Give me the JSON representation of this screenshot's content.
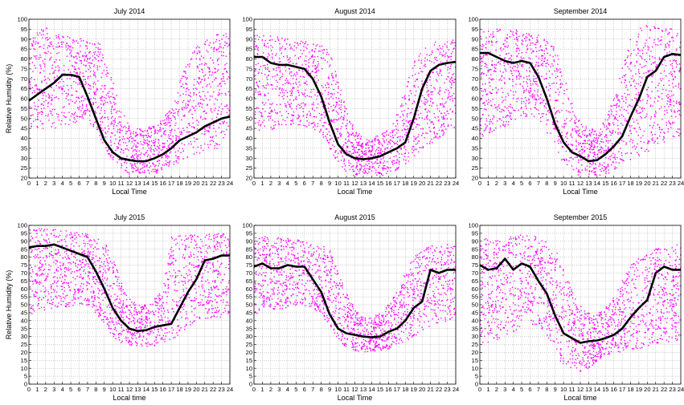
{
  "figure": {
    "ylabel": "Relative Humidity (%)",
    "scatter_color": "#ff00ff",
    "mean_color": "#000000"
  },
  "chart_data": [
    {
      "type": "scatter",
      "title": "July 2014",
      "xlabel": "Local Time",
      "ylabel": "Relative Humidity (%)",
      "xlim": [
        0,
        24
      ],
      "ylim": [
        20,
        100
      ],
      "xticks": [
        0,
        1,
        2,
        3,
        4,
        5,
        6,
        7,
        8,
        9,
        10,
        11,
        12,
        13,
        14,
        15,
        16,
        17,
        18,
        19,
        20,
        21,
        22,
        23,
        24
      ],
      "yticks": [
        20,
        25,
        30,
        35,
        40,
        45,
        50,
        55,
        60,
        65,
        70,
        75,
        80,
        85,
        90,
        95,
        100
      ],
      "grid": true,
      "series": [
        {
          "style": "scatter",
          "x": [
            0,
            1,
            2,
            3,
            4,
            5,
            6,
            7,
            8,
            9,
            10,
            11,
            12,
            13,
            14,
            15,
            16,
            17,
            18,
            19,
            20,
            21,
            22,
            23,
            24
          ],
          "y_low": [
            45,
            45,
            45,
            45,
            46,
            47,
            48,
            48,
            44,
            36,
            28,
            24,
            22,
            22,
            22,
            22,
            24,
            26,
            28,
            30,
            32,
            33,
            34,
            35,
            36
          ],
          "y_high": [
            90,
            94,
            96,
            93,
            92,
            92,
            91,
            90,
            89,
            86,
            70,
            55,
            48,
            45,
            45,
            47,
            50,
            55,
            68,
            80,
            87,
            90,
            92,
            93,
            95
          ]
        },
        {
          "style": "line",
          "x": [
            0,
            1,
            2,
            3,
            4,
            5,
            6,
            7,
            8,
            9,
            10,
            11,
            12,
            13,
            14,
            15,
            16,
            17,
            18,
            19,
            20,
            21,
            22,
            23,
            24
          ],
          "y": [
            59,
            62,
            65,
            68,
            72,
            72,
            71,
            61,
            50,
            39,
            33,
            30,
            29,
            28.5,
            28.5,
            30,
            32,
            35,
            39,
            41,
            43,
            46,
            48,
            50,
            51
          ]
        }
      ]
    },
    {
      "type": "scatter",
      "title": "August 2014",
      "xlabel": "Local Time",
      "ylabel": "",
      "xlim": [
        0,
        24
      ],
      "ylim": [
        20,
        100
      ],
      "xticks": [
        0,
        1,
        2,
        3,
        4,
        5,
        6,
        7,
        8,
        9,
        10,
        11,
        12,
        13,
        14,
        15,
        16,
        17,
        18,
        19,
        20,
        21,
        22,
        23,
        24
      ],
      "yticks": [
        20,
        25,
        30,
        35,
        40,
        45,
        50,
        55,
        60,
        65,
        70,
        75,
        80,
        85,
        90,
        95,
        100
      ],
      "grid": true,
      "series": [
        {
          "style": "scatter",
          "x": [
            0,
            1,
            2,
            3,
            4,
            5,
            6,
            7,
            8,
            9,
            10,
            11,
            12,
            13,
            14,
            15,
            16,
            17,
            18,
            19,
            20,
            21,
            22,
            23,
            24
          ],
          "y_low": [
            43,
            43,
            44,
            45,
            46,
            47,
            46,
            45,
            42,
            35,
            27,
            22,
            21,
            21,
            21,
            21,
            22,
            24,
            27,
            30,
            34,
            37,
            40,
            42,
            43
          ],
          "y_high": [
            92,
            92,
            93,
            91,
            90,
            89,
            89,
            88,
            87,
            84,
            70,
            55,
            45,
            40,
            40,
            42,
            45,
            52,
            65,
            78,
            85,
            88,
            89,
            90,
            90
          ]
        },
        {
          "style": "line",
          "x": [
            0,
            1,
            2,
            3,
            4,
            5,
            6,
            7,
            8,
            9,
            10,
            11,
            12,
            13,
            14,
            15,
            16,
            17,
            18,
            19,
            20,
            21,
            22,
            23,
            24
          ],
          "y": [
            81,
            81,
            78,
            77,
            77,
            76,
            75,
            70,
            61,
            48,
            37,
            32,
            30,
            29.5,
            30,
            31,
            33,
            35,
            38,
            50,
            65,
            74,
            77,
            78,
            78.5
          ]
        }
      ]
    },
    {
      "type": "scatter",
      "title": "September 2014",
      "xlabel": "Local Time",
      "ylabel": "",
      "xlim": [
        0,
        24
      ],
      "ylim": [
        20,
        100
      ],
      "xticks": [
        0,
        1,
        2,
        3,
        4,
        5,
        6,
        7,
        8,
        9,
        10,
        11,
        12,
        13,
        14,
        15,
        16,
        17,
        18,
        19,
        20,
        21,
        22,
        23,
        24
      ],
      "yticks": [
        20,
        25,
        30,
        35,
        40,
        45,
        50,
        55,
        60,
        65,
        70,
        75,
        80,
        85,
        90,
        95,
        100
      ],
      "grid": true,
      "series": [
        {
          "style": "scatter",
          "x": [
            0,
            1,
            2,
            3,
            4,
            5,
            6,
            7,
            8,
            9,
            10,
            11,
            12,
            13,
            14,
            15,
            16,
            17,
            18,
            19,
            20,
            21,
            22,
            23,
            24
          ],
          "y_low": [
            40,
            42,
            44,
            46,
            48,
            50,
            50,
            48,
            42,
            35,
            27,
            23,
            21,
            21,
            21,
            22,
            23,
            25,
            28,
            30,
            33,
            36,
            38,
            40,
            41
          ],
          "y_high": [
            95,
            96,
            96,
            95,
            95,
            94,
            93,
            92,
            90,
            86,
            72,
            58,
            48,
            45,
            45,
            50,
            60,
            75,
            90,
            96,
            97,
            97,
            96,
            95,
            95
          ]
        },
        {
          "style": "line",
          "x": [
            0,
            1,
            2,
            3,
            4,
            5,
            6,
            7,
            8,
            9,
            10,
            11,
            12,
            13,
            14,
            15,
            16,
            17,
            18,
            19,
            20,
            21,
            22,
            23,
            24
          ],
          "y": [
            83,
            83,
            81,
            79,
            78,
            79,
            78,
            71,
            60,
            47,
            38,
            33,
            31,
            28.5,
            29,
            32,
            36,
            41,
            51,
            60,
            71,
            74,
            81,
            82.5,
            82
          ]
        }
      ]
    },
    {
      "type": "scatter",
      "title": "July 2015",
      "xlabel": "Local time",
      "ylabel": "Relative Humidity (%)",
      "xlim": [
        0,
        24
      ],
      "ylim": [
        0,
        100
      ],
      "xticks": [
        0,
        1,
        2,
        3,
        4,
        5,
        6,
        7,
        8,
        9,
        10,
        11,
        12,
        13,
        14,
        15,
        16,
        17,
        18,
        19,
        20,
        21,
        22,
        23,
        24
      ],
      "yticks": [
        0,
        5,
        10,
        15,
        20,
        25,
        30,
        35,
        40,
        45,
        50,
        55,
        60,
        65,
        70,
        75,
        80,
        85,
        90,
        95,
        100
      ],
      "grid": true,
      "series": [
        {
          "style": "scatter",
          "x": [
            0,
            1,
            2,
            3,
            4,
            5,
            6,
            7,
            8,
            9,
            10,
            11,
            12,
            13,
            14,
            15,
            16,
            17,
            18,
            19,
            20,
            21,
            22,
            23,
            24
          ],
          "y_low": [
            44,
            45,
            46,
            47,
            48,
            49,
            50,
            49,
            45,
            38,
            30,
            26,
            24,
            23,
            23,
            24,
            26,
            28,
            31,
            34,
            38,
            40,
            41,
            42,
            43
          ],
          "y_high": [
            97,
            98,
            98,
            98,
            97,
            97,
            96,
            95,
            93,
            90,
            80,
            65,
            55,
            50,
            50,
            55,
            60,
            93,
            94,
            94,
            95,
            95,
            95,
            95,
            95
          ]
        },
        {
          "style": "line",
          "x": [
            0,
            1,
            2,
            3,
            4,
            5,
            6,
            7,
            8,
            9,
            10,
            11,
            12,
            13,
            14,
            15,
            16,
            17,
            18,
            19,
            20,
            21,
            22,
            23,
            24
          ],
          "y": [
            86,
            87,
            87,
            88,
            86,
            84,
            82,
            80,
            71,
            60,
            48,
            40,
            35,
            33.5,
            34,
            36,
            37,
            38,
            48,
            58,
            66,
            78,
            79,
            81,
            81
          ]
        }
      ]
    },
    {
      "type": "scatter",
      "title": "August 2015",
      "xlabel": "Local Time",
      "ylabel": "",
      "xlim": [
        0,
        24
      ],
      "ylim": [
        0,
        100
      ],
      "xticks": [
        0,
        1,
        2,
        3,
        4,
        5,
        6,
        7,
        8,
        9,
        10,
        11,
        12,
        13,
        14,
        15,
        16,
        17,
        18,
        19,
        20,
        21,
        22,
        23,
        24
      ],
      "yticks": [
        0,
        5,
        10,
        15,
        20,
        25,
        30,
        35,
        40,
        45,
        50,
        55,
        60,
        65,
        70,
        75,
        80,
        85,
        90,
        95,
        100
      ],
      "grid": true,
      "series": [
        {
          "style": "scatter",
          "x": [
            0,
            1,
            2,
            3,
            4,
            5,
            6,
            7,
            8,
            9,
            10,
            11,
            12,
            13,
            14,
            15,
            16,
            17,
            18,
            19,
            20,
            21,
            22,
            23,
            24
          ],
          "y_low": [
            44,
            45,
            46,
            47,
            48,
            49,
            49,
            48,
            44,
            36,
            28,
            23,
            21,
            20,
            20,
            21,
            22,
            24,
            27,
            30,
            33,
            36,
            38,
            40,
            42
          ],
          "y_high": [
            92,
            93,
            93,
            92,
            92,
            91,
            90,
            89,
            88,
            85,
            72,
            58,
            48,
            42,
            42,
            45,
            50,
            58,
            70,
            80,
            85,
            88,
            88,
            88,
            88
          ]
        },
        {
          "style": "line",
          "x": [
            0,
            1,
            2,
            3,
            4,
            5,
            6,
            7,
            8,
            9,
            10,
            11,
            12,
            13,
            14,
            15,
            16,
            17,
            18,
            19,
            20,
            21,
            22,
            23,
            24
          ],
          "y": [
            74,
            76,
            73,
            73,
            75,
            74,
            74,
            66,
            58,
            44,
            35,
            32,
            31,
            30,
            29.5,
            30,
            33,
            35,
            40,
            48,
            52,
            72,
            70,
            72,
            72
          ]
        }
      ]
    },
    {
      "type": "scatter",
      "title": "September 2015",
      "xlabel": "Local time",
      "ylabel": "",
      "xlim": [
        0,
        24
      ],
      "ylim": [
        0,
        100
      ],
      "xticks": [
        0,
        1,
        2,
        3,
        4,
        5,
        6,
        7,
        8,
        9,
        10,
        11,
        12,
        13,
        14,
        15,
        16,
        17,
        18,
        19,
        20,
        21,
        22,
        23,
        24
      ],
      "yticks": [
        0,
        5,
        10,
        15,
        20,
        25,
        30,
        35,
        40,
        45,
        50,
        55,
        60,
        65,
        70,
        75,
        80,
        85,
        90,
        95,
        100
      ],
      "grid": true,
      "series": [
        {
          "style": "scatter",
          "x": [
            0,
            1,
            2,
            3,
            4,
            5,
            6,
            7,
            8,
            9,
            10,
            11,
            12,
            13,
            14,
            15,
            16,
            17,
            18,
            19,
            20,
            21,
            22,
            23,
            24
          ],
          "y_low": [
            25,
            26,
            28,
            30,
            33,
            36,
            38,
            36,
            30,
            18,
            12,
            9,
            8,
            10,
            14,
            18,
            20,
            20,
            21,
            22,
            24,
            25,
            26,
            27,
            28
          ],
          "y_high": [
            92,
            92,
            92,
            93,
            94,
            94,
            94,
            93,
            90,
            86,
            72,
            60,
            50,
            45,
            45,
            48,
            55,
            65,
            75,
            80,
            82,
            85,
            87,
            88,
            88
          ]
        },
        {
          "style": "line",
          "x": [
            0,
            1,
            2,
            3,
            4,
            5,
            6,
            7,
            8,
            9,
            10,
            11,
            12,
            13,
            14,
            15,
            16,
            17,
            18,
            19,
            20,
            21,
            22,
            23,
            24
          ],
          "y": [
            75,
            72,
            73,
            79,
            72,
            76,
            74,
            65,
            57,
            43,
            32,
            29,
            26,
            27,
            27.5,
            29,
            31,
            35,
            42,
            48,
            53,
            70,
            74,
            72,
            72
          ]
        }
      ]
    }
  ]
}
